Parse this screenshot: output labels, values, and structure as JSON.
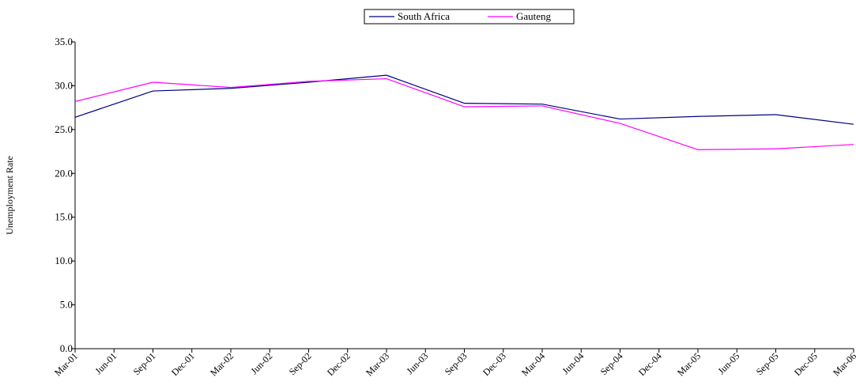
{
  "chart_data": {
    "type": "line",
    "y_label": "Unemployment Rate",
    "categories": [
      "Mar-01",
      "Jun-01",
      "Sep-01",
      "Dec-01",
      "Mar-02",
      "Jun-02",
      "Sep-02",
      "Dec-02",
      "Mar-03",
      "Jun-03",
      "Sep-03",
      "Dec-03",
      "Mar-04",
      "Jun-04",
      "Sep-04",
      "Dec-04",
      "Mar-05",
      "Jun-05",
      "Sep-05",
      "Dec-05",
      "Mar-06"
    ],
    "series": [
      {
        "name": "South Africa",
        "color": "#000080",
        "values": [
          26.4,
          null,
          29.4,
          null,
          29.7,
          null,
          30.4,
          null,
          31.2,
          null,
          28.0,
          null,
          27.9,
          null,
          26.2,
          null,
          26.5,
          null,
          26.7,
          null,
          25.6
        ]
      },
      {
        "name": "Gauteng",
        "color": "#ff00ff",
        "values": [
          28.2,
          null,
          30.4,
          null,
          29.8,
          null,
          30.5,
          null,
          30.8,
          null,
          27.6,
          null,
          27.7,
          null,
          25.7,
          null,
          22.7,
          null,
          22.8,
          null,
          23.3
        ]
      }
    ],
    "span_gaps": true,
    "ylim": [
      0,
      35
    ],
    "yticks": [
      {
        "value": 0,
        "label": "0.0"
      },
      {
        "value": 5,
        "label": "5.0"
      },
      {
        "value": 10,
        "label": "10.0"
      },
      {
        "value": 15,
        "label": "15.0"
      },
      {
        "value": 20,
        "label": "20.0"
      },
      {
        "value": 25,
        "label": "25.0"
      },
      {
        "value": 30,
        "label": "30.0"
      },
      {
        "value": 35,
        "label": "35.0"
      }
    ],
    "legend": "top"
  }
}
